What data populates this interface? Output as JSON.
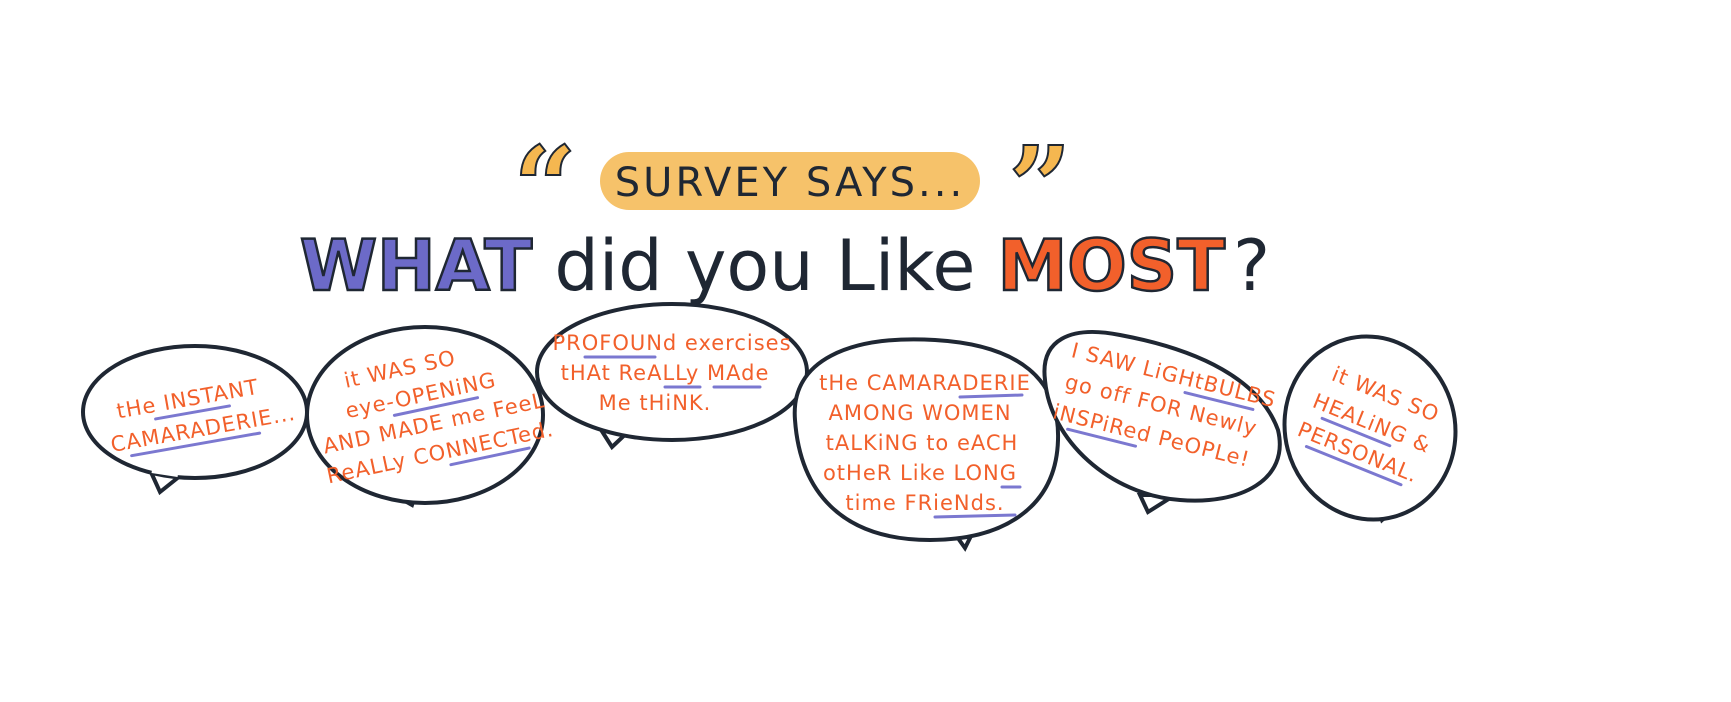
{
  "header": {
    "open_quote": "“",
    "banner": "SURVEY SAYS...",
    "close_quote": "”",
    "question": {
      "part1": "WHAT",
      "part2": " did you Like ",
      "part3": "MOST",
      "part4": "?"
    }
  },
  "bubbles": [
    {
      "lines": [
        "tHe INSTANT",
        "CAMARADERIE..."
      ]
    },
    {
      "lines": [
        "it WAS SO",
        "eye-OPENiNG",
        "AND MADE me FeeL",
        "ReALLy CONNECTed."
      ]
    },
    {
      "lines": [
        "PROFOUNd exercises",
        "tHAt ReALLy MAde",
        "Me tHiNK."
      ]
    },
    {
      "lines": [
        "tHe CAMARADERIE",
        "AMONG WOMEN",
        "tALKiNG to eACH",
        "otHeR Like LONG",
        "time FRieNds."
      ]
    },
    {
      "lines": [
        "I SAW LiGHtBULBS",
        "go off FOR Newly",
        "iNSPiRed PeOPLe!"
      ]
    },
    {
      "lines": [
        "it WAS SO",
        "HEALiNG &",
        "PERSONAL."
      ]
    }
  ],
  "colors": {
    "orange": "#f2602b",
    "navy": "#1f2733",
    "purple": "#6c6ac8",
    "yellow": "#f5b750"
  }
}
